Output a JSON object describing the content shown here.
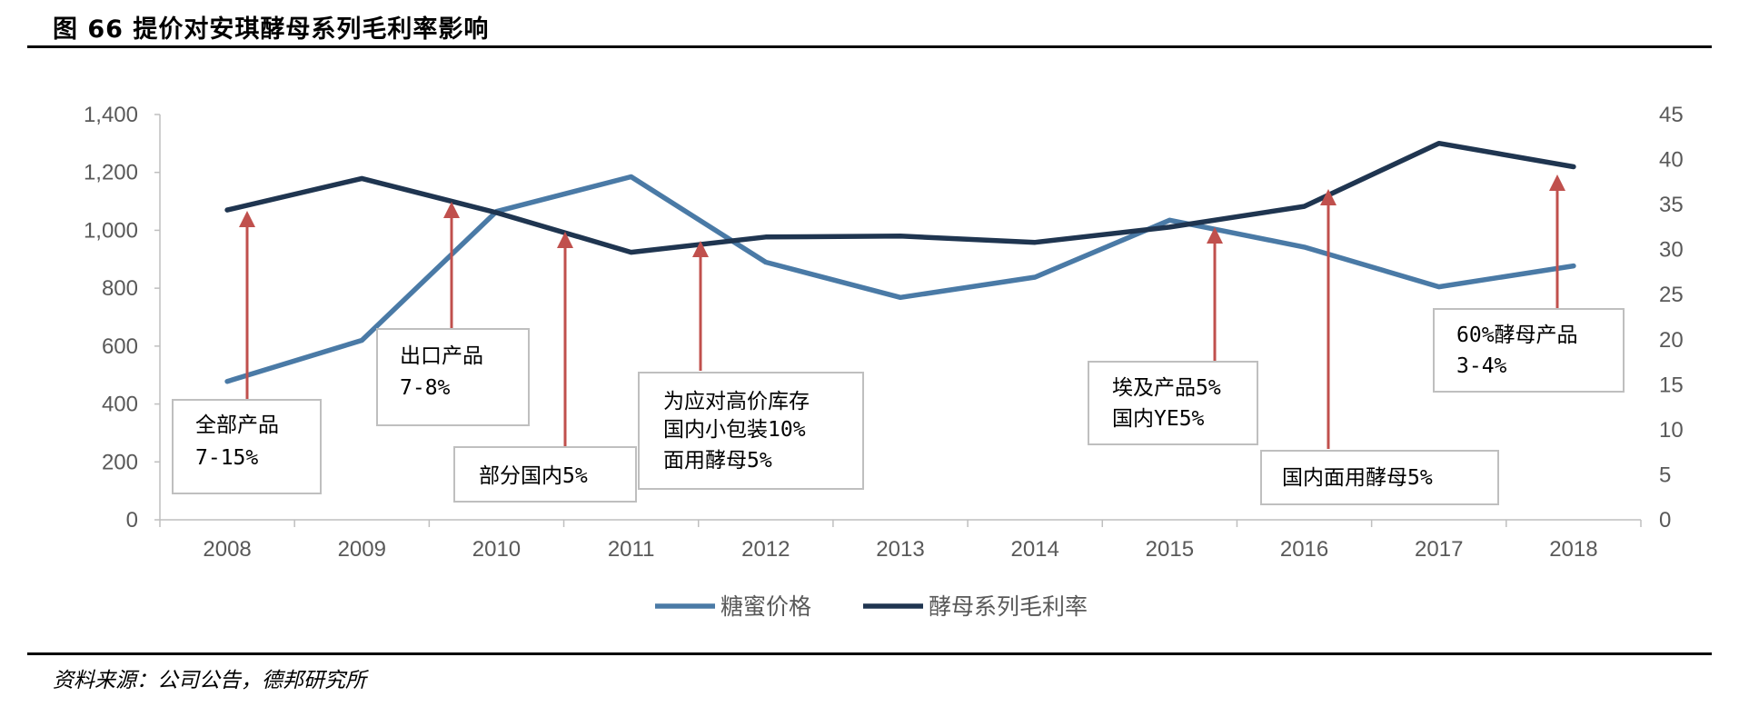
{
  "header": {
    "title": "图 66 提价对安琪酵母系列毛利率影响"
  },
  "footer": {
    "source": "资料来源：公司公告，德邦研究所"
  },
  "chart_data": {
    "type": "line",
    "x": [
      "2008",
      "2009",
      "2010",
      "2011",
      "2012",
      "2013",
      "2014",
      "2015",
      "2016",
      "2017",
      "2018"
    ],
    "y_left": {
      "ylim": [
        0,
        1400
      ],
      "ticks": [
        "0",
        "200",
        "400",
        "600",
        "800",
        "1,000",
        "1,200",
        "1,400"
      ]
    },
    "y_right": {
      "ylim": [
        0,
        45
      ],
      "ticks": [
        "0",
        "5",
        "10",
        "15",
        "20",
        "25",
        "30",
        "35",
        "40",
        "45"
      ]
    },
    "series": [
      {
        "name": "糖蜜价格",
        "axis": "left",
        "color": "#4a7aa6",
        "values": [
          478,
          620,
          1065,
          1185,
          890,
          768,
          838,
          1035,
          942,
          805,
          877
        ]
      },
      {
        "name": "酵母系列毛利率",
        "axis": "right",
        "color": "#1f3550",
        "values": [
          34.4,
          37.9,
          34.1,
          29.7,
          31.4,
          31.5,
          30.8,
          32.5,
          34.8,
          41.8,
          39.2
        ]
      }
    ],
    "legend": "bottom",
    "grid": false,
    "annotations": [
      {
        "lines": [
          "全部产品",
          "7-15%"
        ],
        "x": "2008"
      },
      {
        "lines": [
          "出口产品",
          "7-8%"
        ],
        "x": "2009-2010"
      },
      {
        "lines": [
          "部分国内5%"
        ],
        "x": "2010-2011"
      },
      {
        "lines": [
          "为应对高价库存",
          "国内小包装10%",
          "面用酵母5%"
        ],
        "x": "2011-2012"
      },
      {
        "lines": [
          "埃及产品5%",
          "国内YE5%"
        ],
        "x": "2015-2016"
      },
      {
        "lines": [
          "国内面用酵母5%"
        ],
        "x": "2016"
      },
      {
        "lines": [
          "60%酵母产品",
          "3-4%"
        ],
        "x": "2018"
      }
    ],
    "arrow_color": "#c0504d"
  }
}
